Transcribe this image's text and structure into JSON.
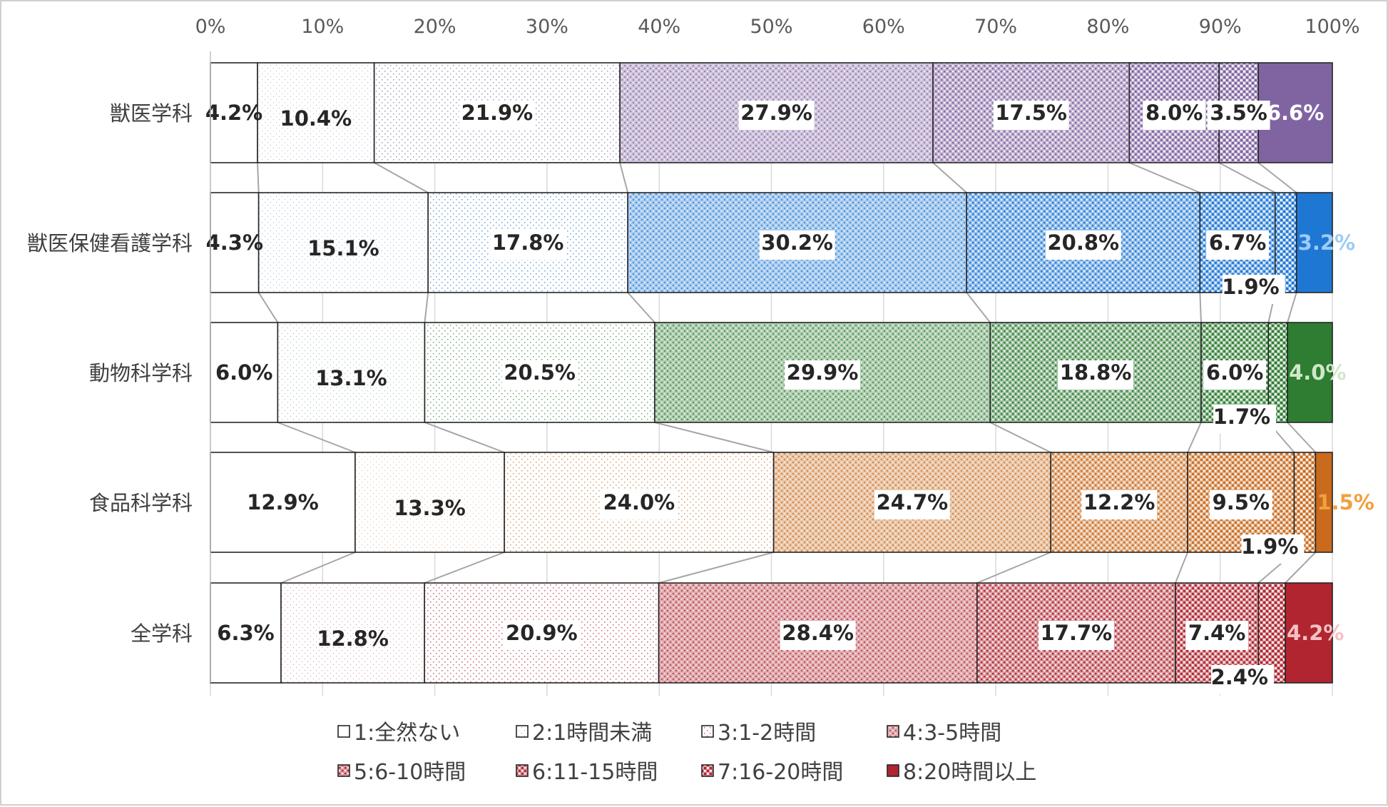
{
  "chart_data": {
    "type": "bar",
    "subtype": "stacked-100-percent-horizontal",
    "categories": [
      "獣医学科",
      "獣医保健看護学科",
      "動物科学科",
      "食品科学科",
      "全学科"
    ],
    "x_ticks": [
      "0%",
      "10%",
      "20%",
      "30%",
      "40%",
      "50%",
      "60%",
      "70%",
      "80%",
      "90%",
      "100%"
    ],
    "xlim": [
      0,
      100
    ],
    "grid": true,
    "legend_position": "bottom",
    "series": [
      {
        "name": "1:全然ない",
        "values": [
          4.2,
          4.3,
          6.0,
          12.9,
          6.3
        ],
        "labels": [
          "4.2%",
          "4.3%",
          "6.0%",
          "12.9%",
          "6.3%"
        ]
      },
      {
        "name": "2:1時間未満",
        "values": [
          10.4,
          15.1,
          13.1,
          13.3,
          12.8
        ],
        "labels": [
          "10.4%",
          "15.1%",
          "13.1%",
          "13.3%",
          "12.8%"
        ]
      },
      {
        "name": "3:1-2時間",
        "values": [
          21.9,
          17.8,
          20.5,
          24.0,
          20.9
        ],
        "labels": [
          "21.9%",
          "17.8%",
          "20.5%",
          "24.0%",
          "20.9%"
        ]
      },
      {
        "name": "4:3-5時間",
        "values": [
          27.9,
          30.2,
          29.9,
          24.7,
          28.4
        ],
        "labels": [
          "27.9%",
          "30.2%",
          "29.9%",
          "24.7%",
          "28.4%"
        ]
      },
      {
        "name": "5:6-10時間",
        "values": [
          17.5,
          20.8,
          18.8,
          12.2,
          17.7
        ],
        "labels": [
          "17.5%",
          "20.8%",
          "18.8%",
          "12.2%",
          "17.7%"
        ]
      },
      {
        "name": "6:11-15時間",
        "values": [
          8.0,
          6.7,
          6.0,
          9.5,
          7.4
        ],
        "labels": [
          "8.0%",
          "6.7%",
          "6.0%",
          "9.5%",
          "7.4%"
        ]
      },
      {
        "name": "7:16-20時間",
        "values": [
          3.5,
          1.9,
          1.7,
          1.9,
          2.4
        ],
        "labels": [
          "3.5%",
          "1.9%",
          "1.7%",
          "1.9%",
          "2.4%"
        ]
      },
      {
        "name": "8:20時間以上",
        "values": [
          6.6,
          3.2,
          4.0,
          1.5,
          4.2
        ],
        "labels": [
          "6.6%",
          "3.2%",
          "4.0%",
          "1.5%",
          "4.2%"
        ]
      }
    ],
    "colors": {
      "獣医学科": "#8064A2",
      "獣医保健看護学科": "#1F77D4",
      "動物科学科": "#2E7D32",
      "食品科学科": "#C96A1C",
      "全学科": "#B02530"
    }
  }
}
